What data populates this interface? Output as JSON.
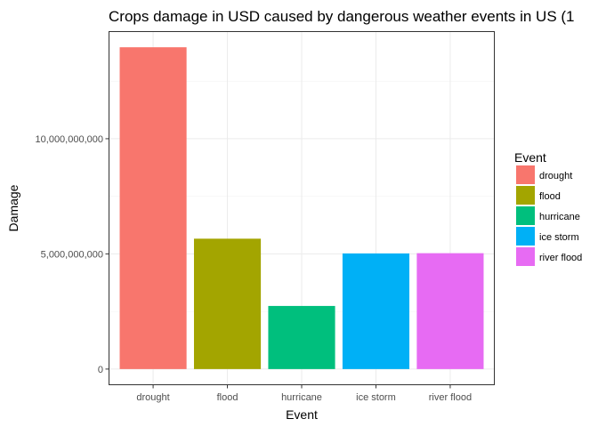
{
  "chart_data": {
    "type": "bar",
    "title": "Crops damage in USD caused by dangerous weather events in US (1",
    "xlabel": "Event",
    "ylabel": "Damage",
    "categories": [
      "drought",
      "flood",
      "hurricane",
      "ice storm",
      "river flood"
    ],
    "values": [
      13970000000,
      5660000000,
      2740000000,
      5020000000,
      5030000000
    ],
    "colors": [
      "#F8766D",
      "#A3A500",
      "#00BF7D",
      "#00B0F6",
      "#E76BF3"
    ],
    "ylim": [
      -700000000,
      14670000000
    ],
    "y_ticks": [
      0,
      5000000000,
      10000000000
    ],
    "y_tick_labels": [
      "0",
      "5,000,000,000",
      "10,000,000,000"
    ],
    "grid": true,
    "legend": {
      "title": "Event",
      "placement": "right",
      "items": [
        "drought",
        "flood",
        "hurricane",
        "ice storm",
        "river flood"
      ]
    }
  }
}
